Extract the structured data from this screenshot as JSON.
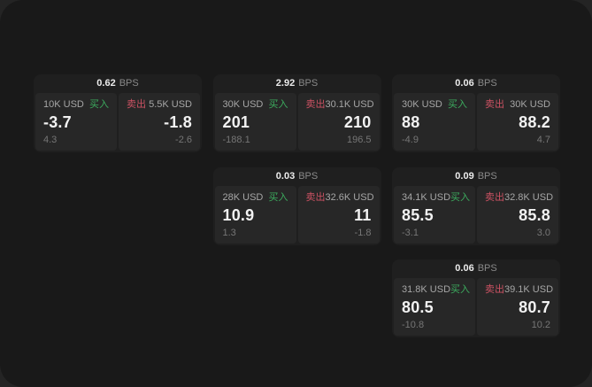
{
  "colors": {
    "buy": "#3cab5e",
    "sell": "#cc5263",
    "window_bg": "#191919",
    "backdrop": "#242424",
    "card_bg": "#1f1f1f",
    "panel_bg": "#272727"
  },
  "labels": {
    "bps": "BPS",
    "buy": "买入",
    "sell": "卖出"
  },
  "cards": [
    {
      "bps": "0.62",
      "buy": {
        "notional": "10K USD",
        "value": "-3.7",
        "sub": "4.3"
      },
      "sell": {
        "notional": "5.5K USD",
        "value": "-1.8",
        "sub": "-2.6"
      }
    },
    {
      "bps": "2.92",
      "buy": {
        "notional": "30K USD",
        "value": "201",
        "sub": "-188.1"
      },
      "sell": {
        "notional": "30.1K USD",
        "value": "210",
        "sub": "196.5"
      }
    },
    {
      "bps": "0.06",
      "buy": {
        "notional": "30K USD",
        "value": "88",
        "sub": "-4.9"
      },
      "sell": {
        "notional": "30K USD",
        "value": "88.2",
        "sub": "4.7"
      }
    },
    {
      "bps": "0.03",
      "buy": {
        "notional": "28K USD",
        "value": "10.9",
        "sub": "1.3"
      },
      "sell": {
        "notional": "32.6K USD",
        "value": "11",
        "sub": "-1.8"
      }
    },
    {
      "bps": "0.09",
      "buy": {
        "notional": "34.1K USD",
        "value": "85.5",
        "sub": "-3.1"
      },
      "sell": {
        "notional": "32.8K USD",
        "value": "85.8",
        "sub": "3.0"
      }
    },
    {
      "bps": "0.06",
      "buy": {
        "notional": "31.8K USD",
        "value": "80.5",
        "sub": "-10.8"
      },
      "sell": {
        "notional": "39.1K USD",
        "value": "80.7",
        "sub": "10.2"
      }
    }
  ]
}
